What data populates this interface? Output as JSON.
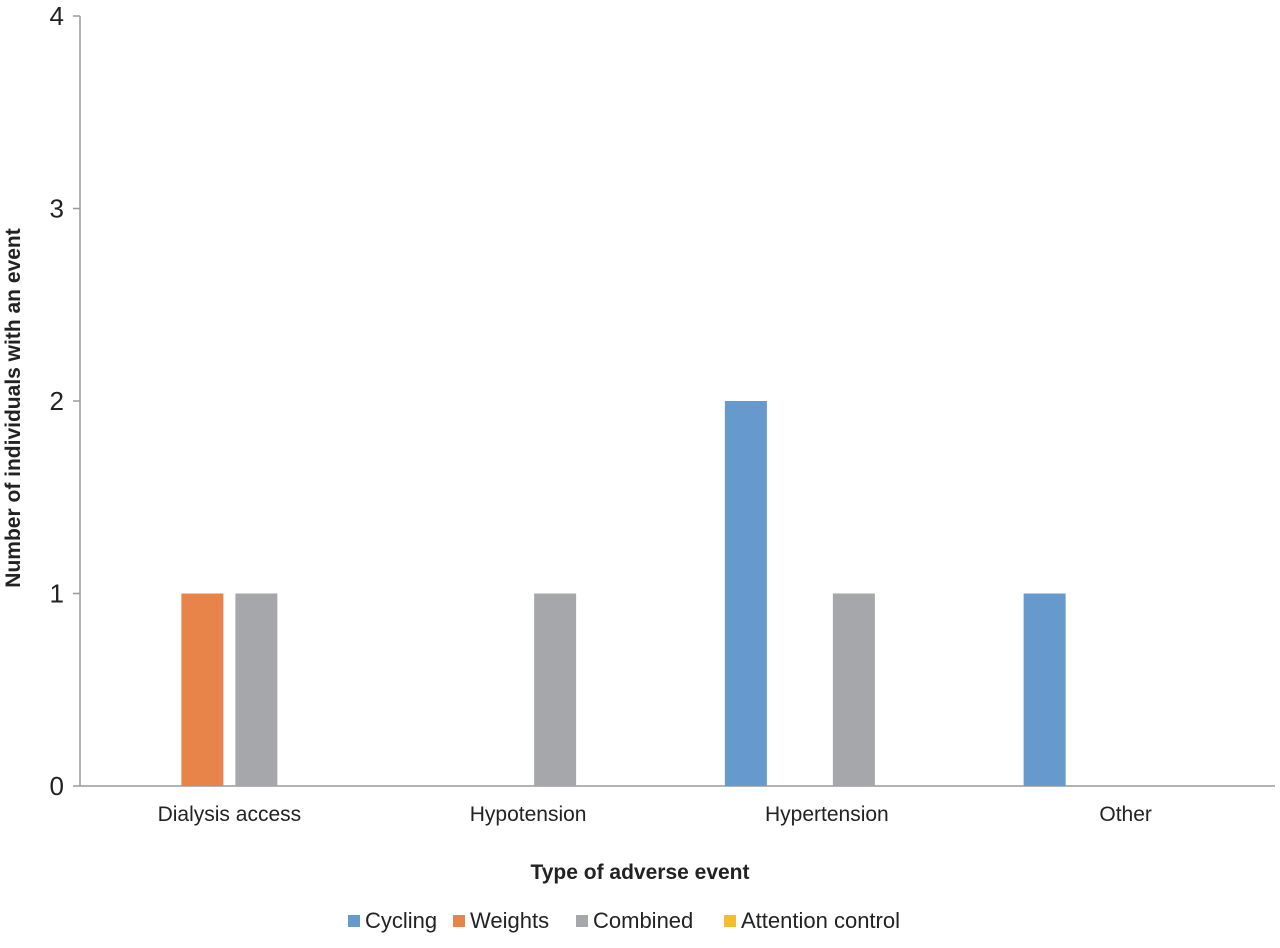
{
  "chart_data": {
    "type": "bar",
    "title": "",
    "xlabel": "Type of adverse event",
    "ylabel": "Number of individuals with an event",
    "categories": [
      "Dialysis access",
      "Hypotension",
      "Hypertension",
      "Other"
    ],
    "series": [
      {
        "name": "Cycling",
        "values": [
          0,
          0,
          2,
          1
        ],
        "color": "#6699CC"
      },
      {
        "name": "Weights",
        "values": [
          1,
          0,
          0,
          0
        ],
        "color": "#E8834A"
      },
      {
        "name": "Combined",
        "values": [
          1,
          1,
          1,
          0
        ],
        "color": "#A5A7AA"
      },
      {
        "name": "Attention control",
        "values": [
          0,
          0,
          0,
          0
        ],
        "color": "#F2BE2E"
      }
    ],
    "ylim": [
      0,
      4
    ],
    "yticks": [
      "0",
      "1",
      "2",
      "3",
      "4"
    ],
    "grid": false,
    "legend_position": "bottom"
  }
}
